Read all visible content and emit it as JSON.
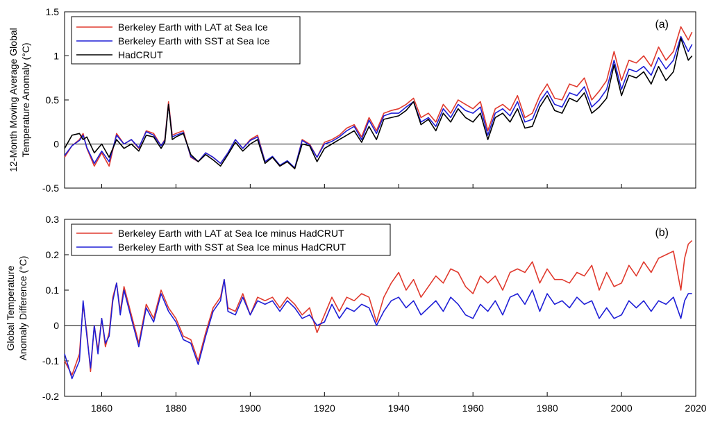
{
  "chart_data": [
    {
      "panel": "a",
      "type": "line",
      "tag": "(a)",
      "ylabel_lines": [
        "12-Month Moving Average Global",
        "Temperature Anomaly (°C)"
      ],
      "xlim": [
        1850,
        2020
      ],
      "ylim": [
        -0.5,
        1.5
      ],
      "xticks": [
        1860,
        1880,
        1900,
        1920,
        1940,
        1960,
        1980,
        2000,
        2020
      ],
      "yticks": [
        -0.5,
        0,
        0.5,
        1,
        1.5
      ],
      "ytick_labels": [
        "-0.5",
        "0",
        "0.5",
        "1",
        "1.5"
      ],
      "xtick_labels_shown": false,
      "zero_line": true,
      "grid": false,
      "legend_position": "top-left",
      "series": [
        {
          "name": "Berkeley Earth with LAT at Sea Ice",
          "color": "#e03a2e",
          "x": [
            1850,
            1852,
            1854,
            1855,
            1856,
            1858,
            1860,
            1862,
            1864,
            1866,
            1868,
            1870,
            1872,
            1874,
            1876,
            1877,
            1878,
            1879,
            1880,
            1882,
            1884,
            1886,
            1888,
            1890,
            1892,
            1894,
            1896,
            1898,
            1900,
            1902,
            1904,
            1906,
            1908,
            1910,
            1912,
            1914,
            1916,
            1918,
            1920,
            1922,
            1924,
            1926,
            1928,
            1930,
            1932,
            1934,
            1936,
            1938,
            1940,
            1942,
            1944,
            1946,
            1948,
            1950,
            1952,
            1954,
            1956,
            1958,
            1960,
            1962,
            1964,
            1966,
            1968,
            1970,
            1972,
            1974,
            1976,
            1978,
            1980,
            1982,
            1984,
            1986,
            1988,
            1990,
            1992,
            1994,
            1996,
            1998,
            2000,
            2002,
            2004,
            2006,
            2008,
            2010,
            2012,
            2014,
            2016,
            2018,
            2019
          ],
          "y": [
            -0.15,
            -0.02,
            0.05,
            0.12,
            -0.05,
            -0.25,
            -0.1,
            -0.25,
            0.12,
            0.0,
            0.05,
            -0.05,
            0.15,
            0.12,
            -0.02,
            0.05,
            0.48,
            0.1,
            0.12,
            0.15,
            -0.15,
            -0.2,
            -0.1,
            -0.15,
            -0.22,
            -0.1,
            0.05,
            -0.05,
            0.05,
            0.1,
            -0.2,
            -0.15,
            -0.25,
            -0.2,
            -0.28,
            0.05,
            0.0,
            -0.15,
            0.02,
            0.05,
            0.1,
            0.18,
            0.22,
            0.08,
            0.3,
            0.15,
            0.35,
            0.38,
            0.4,
            0.45,
            0.52,
            0.3,
            0.35,
            0.25,
            0.45,
            0.35,
            0.5,
            0.45,
            0.4,
            0.48,
            0.15,
            0.4,
            0.45,
            0.38,
            0.55,
            0.3,
            0.35,
            0.55,
            0.68,
            0.52,
            0.5,
            0.68,
            0.65,
            0.75,
            0.5,
            0.6,
            0.72,
            1.05,
            0.72,
            0.95,
            0.92,
            1.0,
            0.88,
            1.1,
            0.95,
            1.05,
            1.33,
            1.18,
            1.27
          ]
        },
        {
          "name": "Berkeley Earth with SST at Sea Ice",
          "color": "#1f1fd6",
          "x": [
            1850,
            1852,
            1854,
            1855,
            1856,
            1858,
            1860,
            1862,
            1864,
            1866,
            1868,
            1870,
            1872,
            1874,
            1876,
            1877,
            1878,
            1879,
            1880,
            1882,
            1884,
            1886,
            1888,
            1890,
            1892,
            1894,
            1896,
            1898,
            1900,
            1902,
            1904,
            1906,
            1908,
            1910,
            1912,
            1914,
            1916,
            1918,
            1920,
            1922,
            1924,
            1926,
            1928,
            1930,
            1932,
            1934,
            1936,
            1938,
            1940,
            1942,
            1944,
            1946,
            1948,
            1950,
            1952,
            1954,
            1956,
            1958,
            1960,
            1962,
            1964,
            1966,
            1968,
            1970,
            1972,
            1974,
            1976,
            1978,
            1980,
            1982,
            1984,
            1986,
            1988,
            1990,
            1992,
            1994,
            1996,
            1998,
            2000,
            2002,
            2004,
            2006,
            2008,
            2010,
            2012,
            2014,
            2016,
            2018,
            2019
          ],
          "y": [
            -0.13,
            -0.02,
            0.04,
            0.1,
            -0.04,
            -0.22,
            -0.08,
            -0.2,
            0.1,
            0.0,
            0.05,
            -0.04,
            0.14,
            0.1,
            -0.02,
            0.04,
            0.45,
            0.08,
            0.1,
            0.13,
            -0.14,
            -0.2,
            -0.1,
            -0.15,
            -0.22,
            -0.1,
            0.05,
            -0.05,
            0.04,
            0.08,
            -0.2,
            -0.14,
            -0.24,
            -0.19,
            -0.27,
            0.04,
            -0.01,
            -0.15,
            0.0,
            0.03,
            0.08,
            0.15,
            0.2,
            0.05,
            0.27,
            0.12,
            0.32,
            0.35,
            0.35,
            0.42,
            0.48,
            0.25,
            0.3,
            0.2,
            0.4,
            0.3,
            0.45,
            0.38,
            0.35,
            0.42,
            0.1,
            0.35,
            0.4,
            0.32,
            0.48,
            0.25,
            0.28,
            0.48,
            0.6,
            0.45,
            0.42,
            0.58,
            0.55,
            0.65,
            0.42,
            0.5,
            0.62,
            0.95,
            0.62,
            0.85,
            0.82,
            0.88,
            0.78,
            0.98,
            0.85,
            0.95,
            1.22,
            1.05,
            1.13
          ]
        },
        {
          "name": "HadCRUT",
          "color": "#000000",
          "x": [
            1850,
            1852,
            1854,
            1855,
            1856,
            1858,
            1860,
            1862,
            1864,
            1866,
            1868,
            1870,
            1872,
            1874,
            1876,
            1877,
            1878,
            1879,
            1880,
            1882,
            1884,
            1886,
            1888,
            1890,
            1892,
            1894,
            1896,
            1898,
            1900,
            1902,
            1904,
            1906,
            1908,
            1910,
            1912,
            1914,
            1916,
            1918,
            1920,
            1922,
            1924,
            1926,
            1928,
            1930,
            1932,
            1934,
            1936,
            1938,
            1940,
            1942,
            1944,
            1946,
            1948,
            1950,
            1952,
            1954,
            1956,
            1958,
            1960,
            1962,
            1964,
            1966,
            1968,
            1970,
            1972,
            1974,
            1976,
            1978,
            1980,
            1982,
            1984,
            1986,
            1988,
            1990,
            1992,
            1994,
            1996,
            1998,
            2000,
            2002,
            2004,
            2006,
            2008,
            2010,
            2012,
            2014,
            2016,
            2018,
            2019
          ],
          "y": [
            -0.05,
            0.1,
            0.12,
            0.05,
            0.08,
            -0.1,
            0.0,
            -0.15,
            0.05,
            -0.05,
            0.0,
            -0.08,
            0.1,
            0.08,
            -0.05,
            0.02,
            0.45,
            0.05,
            0.08,
            0.12,
            -0.12,
            -0.2,
            -0.12,
            -0.18,
            -0.25,
            -0.12,
            0.02,
            -0.08,
            0.0,
            0.05,
            -0.22,
            -0.15,
            -0.25,
            -0.2,
            -0.28,
            0.0,
            -0.02,
            -0.2,
            -0.05,
            0.0,
            0.05,
            0.1,
            0.15,
            0.02,
            0.2,
            0.05,
            0.28,
            0.3,
            0.32,
            0.38,
            0.48,
            0.22,
            0.28,
            0.15,
            0.35,
            0.25,
            0.4,
            0.3,
            0.25,
            0.35,
            0.05,
            0.3,
            0.35,
            0.25,
            0.4,
            0.18,
            0.2,
            0.42,
            0.55,
            0.38,
            0.35,
            0.52,
            0.48,
            0.58,
            0.35,
            0.42,
            0.52,
            0.9,
            0.55,
            0.78,
            0.75,
            0.82,
            0.68,
            0.88,
            0.72,
            0.82,
            1.2,
            0.95,
            1.0
          ]
        }
      ]
    },
    {
      "panel": "b",
      "type": "line",
      "tag": "(b)",
      "ylabel_lines": [
        "Global Temperature",
        "Anomaly Difference (°C)"
      ],
      "xlim": [
        1850,
        2020
      ],
      "ylim": [
        -0.2,
        0.3
      ],
      "xticks": [
        1860,
        1880,
        1900,
        1920,
        1940,
        1960,
        1980,
        2000,
        2020
      ],
      "xtick_labels": [
        "1860",
        "1880",
        "1900",
        "1920",
        "1940",
        "1960",
        "1980",
        "2000",
        "2020"
      ],
      "yticks": [
        -0.2,
        -0.1,
        0,
        0.1,
        0.2,
        0.3
      ],
      "ytick_labels": [
        "-0.2",
        "-0.1",
        "0",
        "0.1",
        "0.2",
        "0.3"
      ],
      "zero_line": true,
      "grid": false,
      "legend_position": "top-left",
      "series": [
        {
          "name": "Berkeley Earth with LAT at Sea Ice minus HadCRUT",
          "color": "#e03a2e",
          "x": [
            1850,
            1852,
            1854,
            1855,
            1856,
            1857,
            1858,
            1859,
            1860,
            1861,
            1862,
            1863,
            1864,
            1865,
            1866,
            1868,
            1870,
            1872,
            1874,
            1876,
            1878,
            1880,
            1882,
            1884,
            1886,
            1888,
            1890,
            1892,
            1893,
            1894,
            1896,
            1898,
            1900,
            1902,
            1904,
            1906,
            1908,
            1910,
            1912,
            1914,
            1916,
            1918,
            1920,
            1922,
            1924,
            1926,
            1928,
            1930,
            1932,
            1934,
            1936,
            1938,
            1940,
            1942,
            1944,
            1946,
            1948,
            1950,
            1952,
            1954,
            1956,
            1958,
            1960,
            1962,
            1964,
            1966,
            1968,
            1970,
            1972,
            1974,
            1976,
            1978,
            1980,
            1982,
            1984,
            1986,
            1988,
            1990,
            1992,
            1994,
            1996,
            1998,
            2000,
            2002,
            2004,
            2006,
            2008,
            2010,
            2012,
            2014,
            2016,
            2017,
            2018,
            2019
          ],
          "y": [
            -0.1,
            -0.14,
            -0.08,
            0.06,
            -0.02,
            -0.13,
            0.0,
            -0.07,
            0.02,
            -0.06,
            -0.02,
            0.08,
            0.12,
            0.04,
            0.11,
            0.03,
            -0.05,
            0.06,
            0.02,
            0.1,
            0.05,
            0.02,
            -0.03,
            -0.04,
            -0.1,
            -0.02,
            0.05,
            0.08,
            0.13,
            0.05,
            0.04,
            0.09,
            0.03,
            0.08,
            0.07,
            0.08,
            0.05,
            0.08,
            0.06,
            0.03,
            0.05,
            -0.02,
            0.03,
            0.08,
            0.04,
            0.08,
            0.07,
            0.09,
            0.08,
            0.01,
            0.08,
            0.12,
            0.15,
            0.1,
            0.13,
            0.08,
            0.11,
            0.14,
            0.12,
            0.16,
            0.15,
            0.11,
            0.09,
            0.14,
            0.12,
            0.14,
            0.1,
            0.15,
            0.16,
            0.15,
            0.18,
            0.12,
            0.16,
            0.13,
            0.13,
            0.12,
            0.15,
            0.14,
            0.17,
            0.1,
            0.15,
            0.11,
            0.12,
            0.17,
            0.14,
            0.18,
            0.15,
            0.19,
            0.2,
            0.21,
            0.1,
            0.19,
            0.23,
            0.24
          ]
        },
        {
          "name": "Berkeley Earth with SST at Sea Ice minus HadCRUT",
          "color": "#1f1fd6",
          "x": [
            1850,
            1852,
            1854,
            1855,
            1856,
            1857,
            1858,
            1859,
            1860,
            1861,
            1862,
            1863,
            1864,
            1865,
            1866,
            1868,
            1870,
            1872,
            1874,
            1876,
            1878,
            1880,
            1882,
            1884,
            1886,
            1888,
            1890,
            1892,
            1893,
            1894,
            1896,
            1898,
            1900,
            1902,
            1904,
            1906,
            1908,
            1910,
            1912,
            1914,
            1916,
            1918,
            1920,
            1922,
            1924,
            1926,
            1928,
            1930,
            1932,
            1934,
            1936,
            1938,
            1940,
            1942,
            1944,
            1946,
            1948,
            1950,
            1952,
            1954,
            1956,
            1958,
            1960,
            1962,
            1964,
            1966,
            1968,
            1970,
            1972,
            1974,
            1976,
            1978,
            1980,
            1982,
            1984,
            1986,
            1988,
            1990,
            1992,
            1994,
            1996,
            1998,
            2000,
            2002,
            2004,
            2006,
            2008,
            2010,
            2012,
            2014,
            2016,
            2017,
            2018,
            2019
          ],
          "y": [
            -0.08,
            -0.15,
            -0.1,
            0.07,
            -0.03,
            -0.12,
            0.0,
            -0.08,
            0.02,
            -0.05,
            -0.03,
            0.07,
            0.12,
            0.03,
            0.1,
            0.02,
            -0.06,
            0.05,
            0.01,
            0.09,
            0.04,
            0.01,
            -0.04,
            -0.05,
            -0.11,
            -0.03,
            0.04,
            0.07,
            0.13,
            0.04,
            0.03,
            0.08,
            0.03,
            0.07,
            0.06,
            0.07,
            0.04,
            0.07,
            0.05,
            0.02,
            0.03,
            0.0,
            0.01,
            0.06,
            0.02,
            0.05,
            0.04,
            0.06,
            0.05,
            0.0,
            0.04,
            0.07,
            0.08,
            0.05,
            0.07,
            0.03,
            0.05,
            0.07,
            0.04,
            0.08,
            0.06,
            0.03,
            0.02,
            0.06,
            0.04,
            0.07,
            0.03,
            0.08,
            0.09,
            0.06,
            0.1,
            0.04,
            0.09,
            0.06,
            0.07,
            0.05,
            0.08,
            0.06,
            0.07,
            0.02,
            0.05,
            0.02,
            0.03,
            0.07,
            0.05,
            0.07,
            0.04,
            0.07,
            0.06,
            0.08,
            0.02,
            0.07,
            0.09,
            0.09
          ]
        }
      ]
    }
  ]
}
